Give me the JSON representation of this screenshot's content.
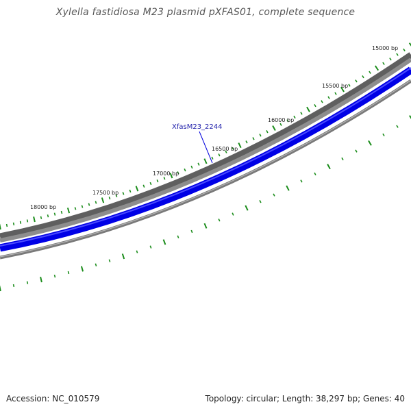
{
  "title": "Xylella fastidiosa M23 plasmid pXFAS01, complete sequence",
  "footer": {
    "accession": "Accession: NC_010579",
    "summary": "Topology: circular; Length: 38,297 bp; Genes: 40"
  },
  "ticks": [
    {
      "bp": 15000,
      "label": "15000 bp"
    },
    {
      "bp": 15500,
      "label": "15500 bp"
    },
    {
      "bp": 16000,
      "label": "16000 bp"
    },
    {
      "bp": 16500,
      "label": "16500 bp"
    },
    {
      "bp": 17000,
      "label": "17000 bp"
    },
    {
      "bp": 17500,
      "label": "17500 bp"
    },
    {
      "bp": 18000,
      "label": "18000 bp"
    }
  ],
  "gene_labels": [
    {
      "text": "XfasM23_2244"
    }
  ],
  "colors": {
    "background": "#ffffff",
    "tick_marks": "#1a8c1a",
    "backbone_outer": "#5f5f5f",
    "backbone_inner": "#8c8c8c",
    "gene_track": "#0000e6",
    "inner_ring": "#7a7a7a",
    "gene_label": "#1a1aa8"
  }
}
